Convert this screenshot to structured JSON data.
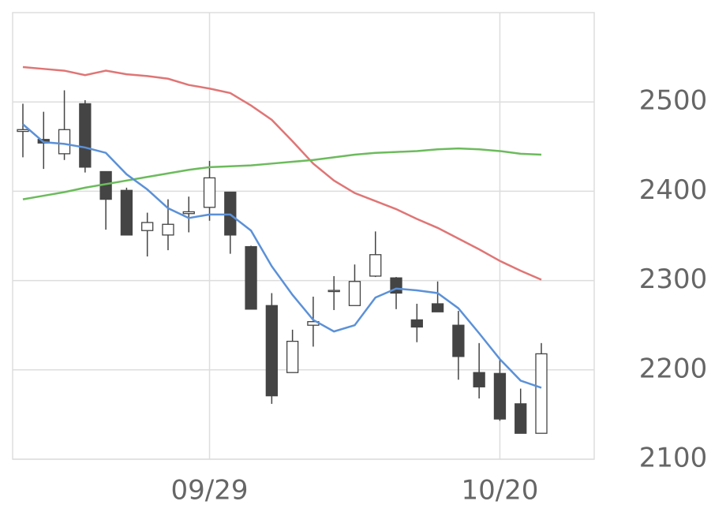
{
  "chart_data": {
    "type": "candlestick",
    "categories": [
      null,
      null,
      null,
      null,
      null,
      null,
      null,
      null,
      null,
      "09/29",
      null,
      null,
      null,
      null,
      null,
      null,
      null,
      null,
      null,
      null,
      null,
      null,
      null,
      "10/20",
      null,
      null
    ],
    "open": [
      2467,
      2458,
      2442,
      2498,
      2422,
      2401,
      2356,
      2351,
      2375,
      2382,
      2399,
      2338,
      2272,
      2197,
      2250,
      2288,
      2272,
      2305,
      2303,
      2256,
      2274,
      2250,
      2197,
      2196,
      2162,
      2129
    ],
    "high": [
      2498,
      2489,
      2513,
      2502,
      2422,
      2404,
      2376,
      2391,
      2394,
      2434,
      2399,
      2339,
      2286,
      2245,
      2282,
      2305,
      2318,
      2355,
      2304,
      2274,
      2299,
      2266,
      2230,
      2212,
      2179,
      2230
    ],
    "low": [
      2438,
      2425,
      2435,
      2421,
      2357,
      2351,
      2327,
      2334,
      2354,
      2367,
      2330,
      2268,
      2162,
      2197,
      2226,
      2267,
      2272,
      2304,
      2268,
      2231,
      2265,
      2189,
      2168,
      2143,
      2129,
      2129
    ],
    "close": [
      2469,
      2454,
      2469,
      2427,
      2391,
      2351,
      2365,
      2363,
      2377,
      2415,
      2351,
      2268,
      2171,
      2232,
      2254,
      2289,
      2299,
      2329,
      2286,
      2248,
      2265,
      2215,
      2181,
      2145,
      2129,
      2218
    ],
    "up_color": "#ffffff",
    "down_color": "#444444",
    "lines": [
      {
        "color": "#e07575",
        "values": [
          2539,
          2537,
          2535,
          2530,
          2535,
          2531,
          2529,
          2526,
          2519,
          2515,
          2510,
          2496,
          2480,
          2456,
          2431,
          2412,
          2398,
          2389,
          2380,
          2369,
          2359,
          2347,
          2335,
          2322,
          2311,
          2301
        ]
      },
      {
        "color": "#6cbb5c",
        "values": [
          2391,
          2395,
          2399,
          2404,
          2408,
          2412,
          2416,
          2420,
          2424,
          2427,
          2428,
          2429,
          2431,
          2433,
          2435,
          2438,
          2441,
          2443,
          2444,
          2445,
          2447,
          2448,
          2447,
          2445,
          2442,
          2441
        ]
      },
      {
        "color": "#5b91d8",
        "values": [
          2475,
          2455,
          2453,
          2449,
          2443,
          2419,
          2402,
          2381,
          2370,
          2374,
          2374,
          2356,
          2316,
          2284,
          2256,
          2243,
          2250,
          2281,
          2291,
          2289,
          2286,
          2269,
          2241,
          2212,
          2188,
          2180
        ]
      }
    ],
    "ylim": [
      2100,
      2600
    ],
    "yticks": [
      2100,
      2200,
      2300,
      2400,
      2500
    ],
    "grid": true
  }
}
